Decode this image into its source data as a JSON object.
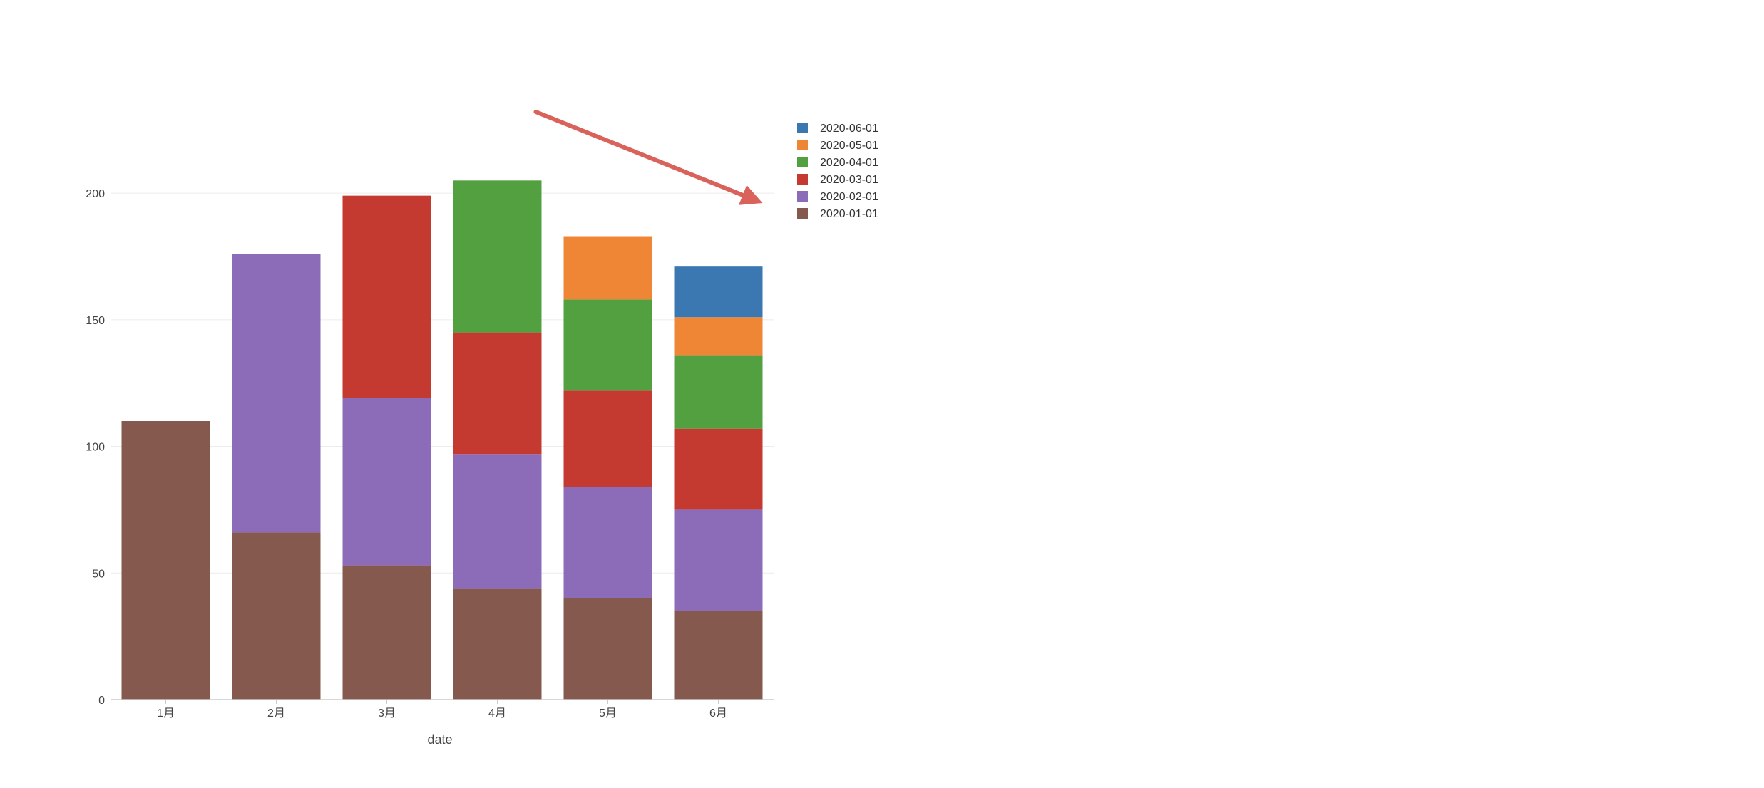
{
  "chart_data": {
    "type": "bar",
    "stacked": true,
    "title": "",
    "xlabel": "date",
    "ylabel": "",
    "ylim": [
      0,
      220
    ],
    "yticks": [
      0,
      50,
      100,
      150,
      200
    ],
    "grid": "horizontal",
    "legend_position": "right",
    "categories": [
      "1月",
      "2月",
      "3月",
      "4月",
      "5月",
      "6月"
    ],
    "series": [
      {
        "name": "2020-01-01",
        "color": "#85594e",
        "values": [
          110,
          66,
          53,
          44,
          40,
          35
        ]
      },
      {
        "name": "2020-02-01",
        "color": "#8c6bb8",
        "values": [
          0,
          110,
          66,
          53,
          44,
          40
        ]
      },
      {
        "name": "2020-03-01",
        "color": "#c43a31",
        "values": [
          0,
          0,
          80,
          48,
          38,
          32
        ]
      },
      {
        "name": "2020-04-01",
        "color": "#53a041",
        "values": [
          0,
          0,
          0,
          60,
          36,
          29
        ]
      },
      {
        "name": "2020-05-01",
        "color": "#ef8636",
        "values": [
          0,
          0,
          0,
          0,
          25,
          15
        ]
      },
      {
        "name": "2020-06-01",
        "color": "#3b78b2",
        "values": [
          0,
          0,
          0,
          0,
          0,
          20
        ]
      }
    ],
    "annotation": {
      "type": "arrow",
      "color": "#d9625a",
      "description_from": "4月",
      "description_to": "6月"
    }
  }
}
